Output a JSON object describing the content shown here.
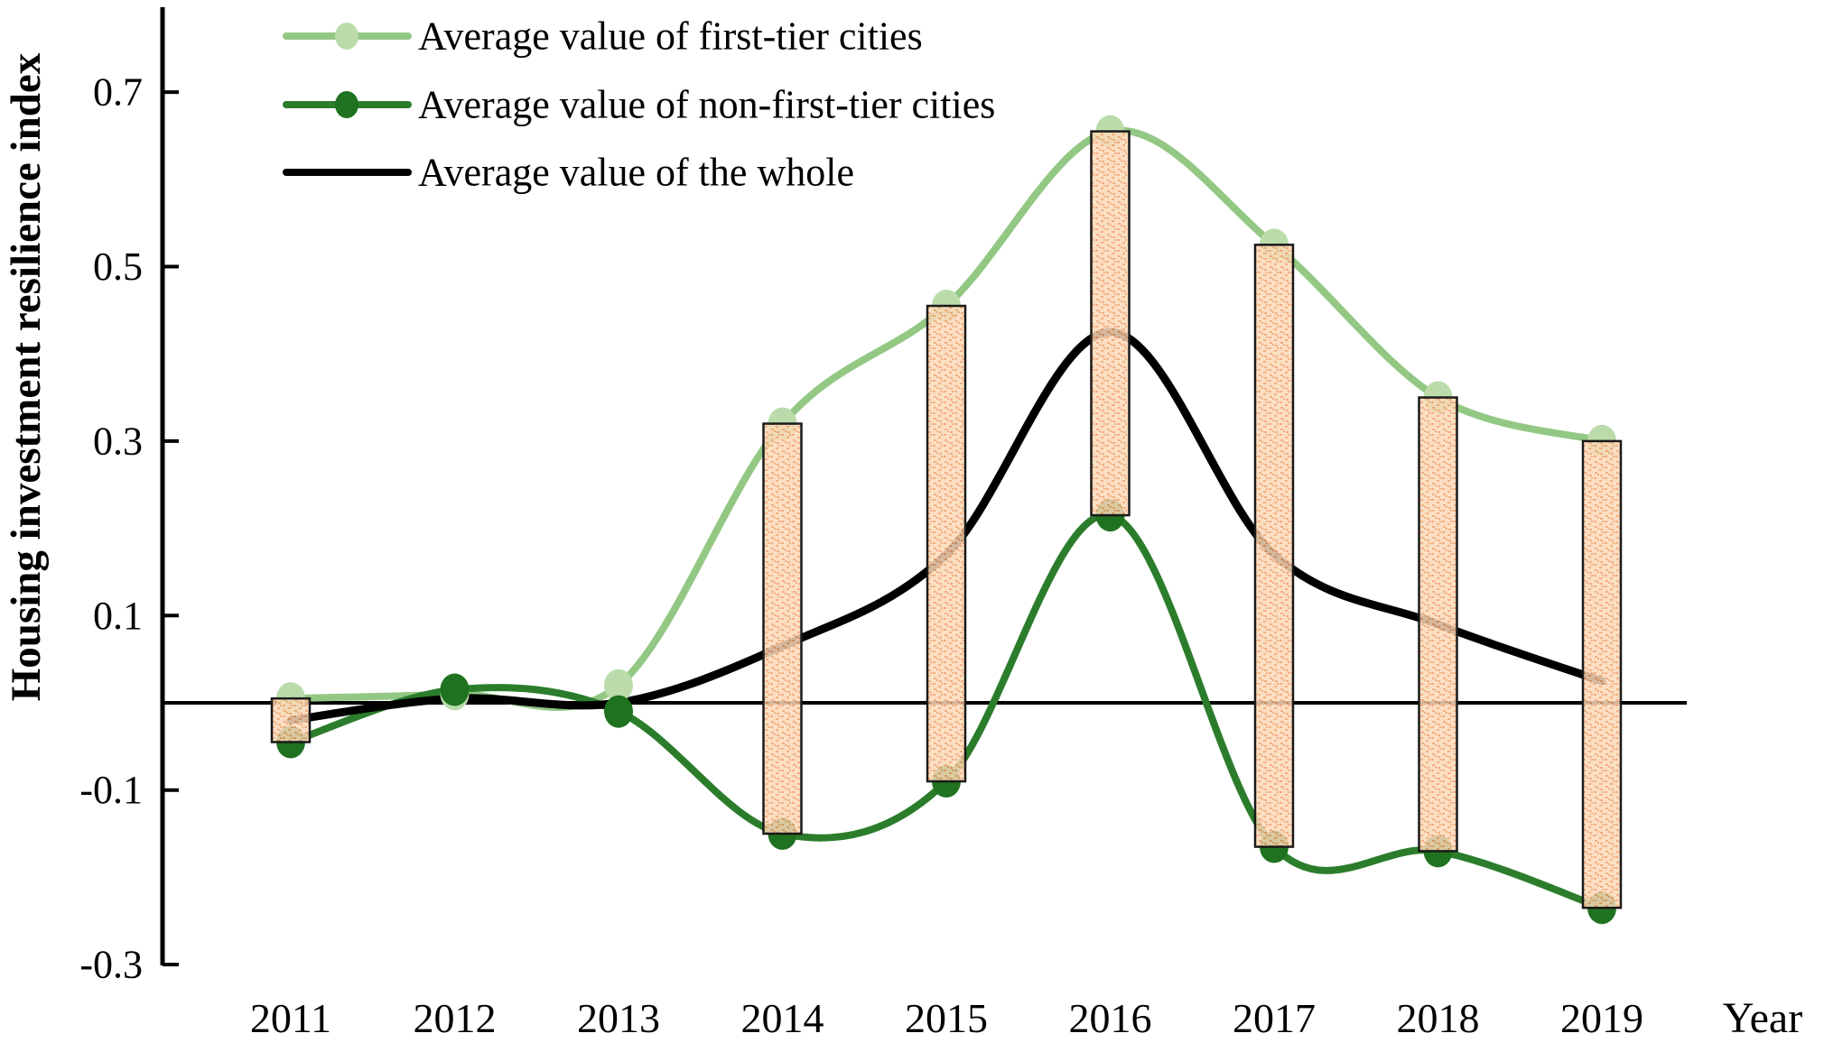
{
  "figure": {
    "y_axis_title": "Housing investment resilience index",
    "x_axis_title": "Year"
  },
  "legend": {
    "items": [
      {
        "label": "Average value of first-tier cities",
        "series": "first_tier"
      },
      {
        "label": "Average value of non-first-tier cities",
        "series": "non_first_tier"
      },
      {
        "label": "Average value of the whole",
        "series": "whole"
      }
    ]
  },
  "colors": {
    "first_tier_line": "#92C883",
    "first_tier_marker": "#BBDCAA",
    "non_first_tier_line": "#2B7D2B",
    "non_first_tier_marker": "#1F721F",
    "whole_line": "#000000",
    "bar_fill": "#FBD8B8",
    "bar_hatch": "#F0A26B",
    "bar_border": "#1a1a1a",
    "axis": "#000000"
  },
  "chart_data": {
    "type": "line",
    "title": "",
    "xlabel": "Year",
    "ylabel": "Housing investment resilience index",
    "x": [
      2011,
      2012,
      2013,
      2014,
      2015,
      2016,
      2017,
      2018,
      2019
    ],
    "series": [
      {
        "name": "Average value of first-tier cities",
        "values": [
          0.005,
          0.01,
          0.02,
          0.32,
          0.455,
          0.655,
          0.525,
          0.35,
          0.3
        ],
        "smooth": true,
        "markers": true
      },
      {
        "name": "Average value of non-first-tier cities",
        "values": [
          -0.045,
          0.015,
          -0.01,
          -0.15,
          -0.09,
          0.215,
          -0.165,
          -0.17,
          -0.235
        ],
        "smooth": true,
        "markers": true
      },
      {
        "name": "Average value of the whole",
        "values": [
          -0.02,
          0.005,
          0.0,
          0.065,
          0.17,
          0.425,
          0.17,
          0.09,
          0.025
        ],
        "smooth": true,
        "markers": false
      }
    ],
    "gap_bars": {
      "description": "hatched bars spanning from first-tier value down to non-first-tier value",
      "years": [
        2011,
        2014,
        2015,
        2016,
        2017,
        2018,
        2019
      ]
    },
    "yticks": [
      0.7,
      0.5,
      0.3,
      0.1,
      -0.1,
      -0.3
    ],
    "ylim": [
      -0.33,
      0.79
    ],
    "grid": false,
    "legend_position": "top-left inside plot",
    "zero_line": true
  }
}
